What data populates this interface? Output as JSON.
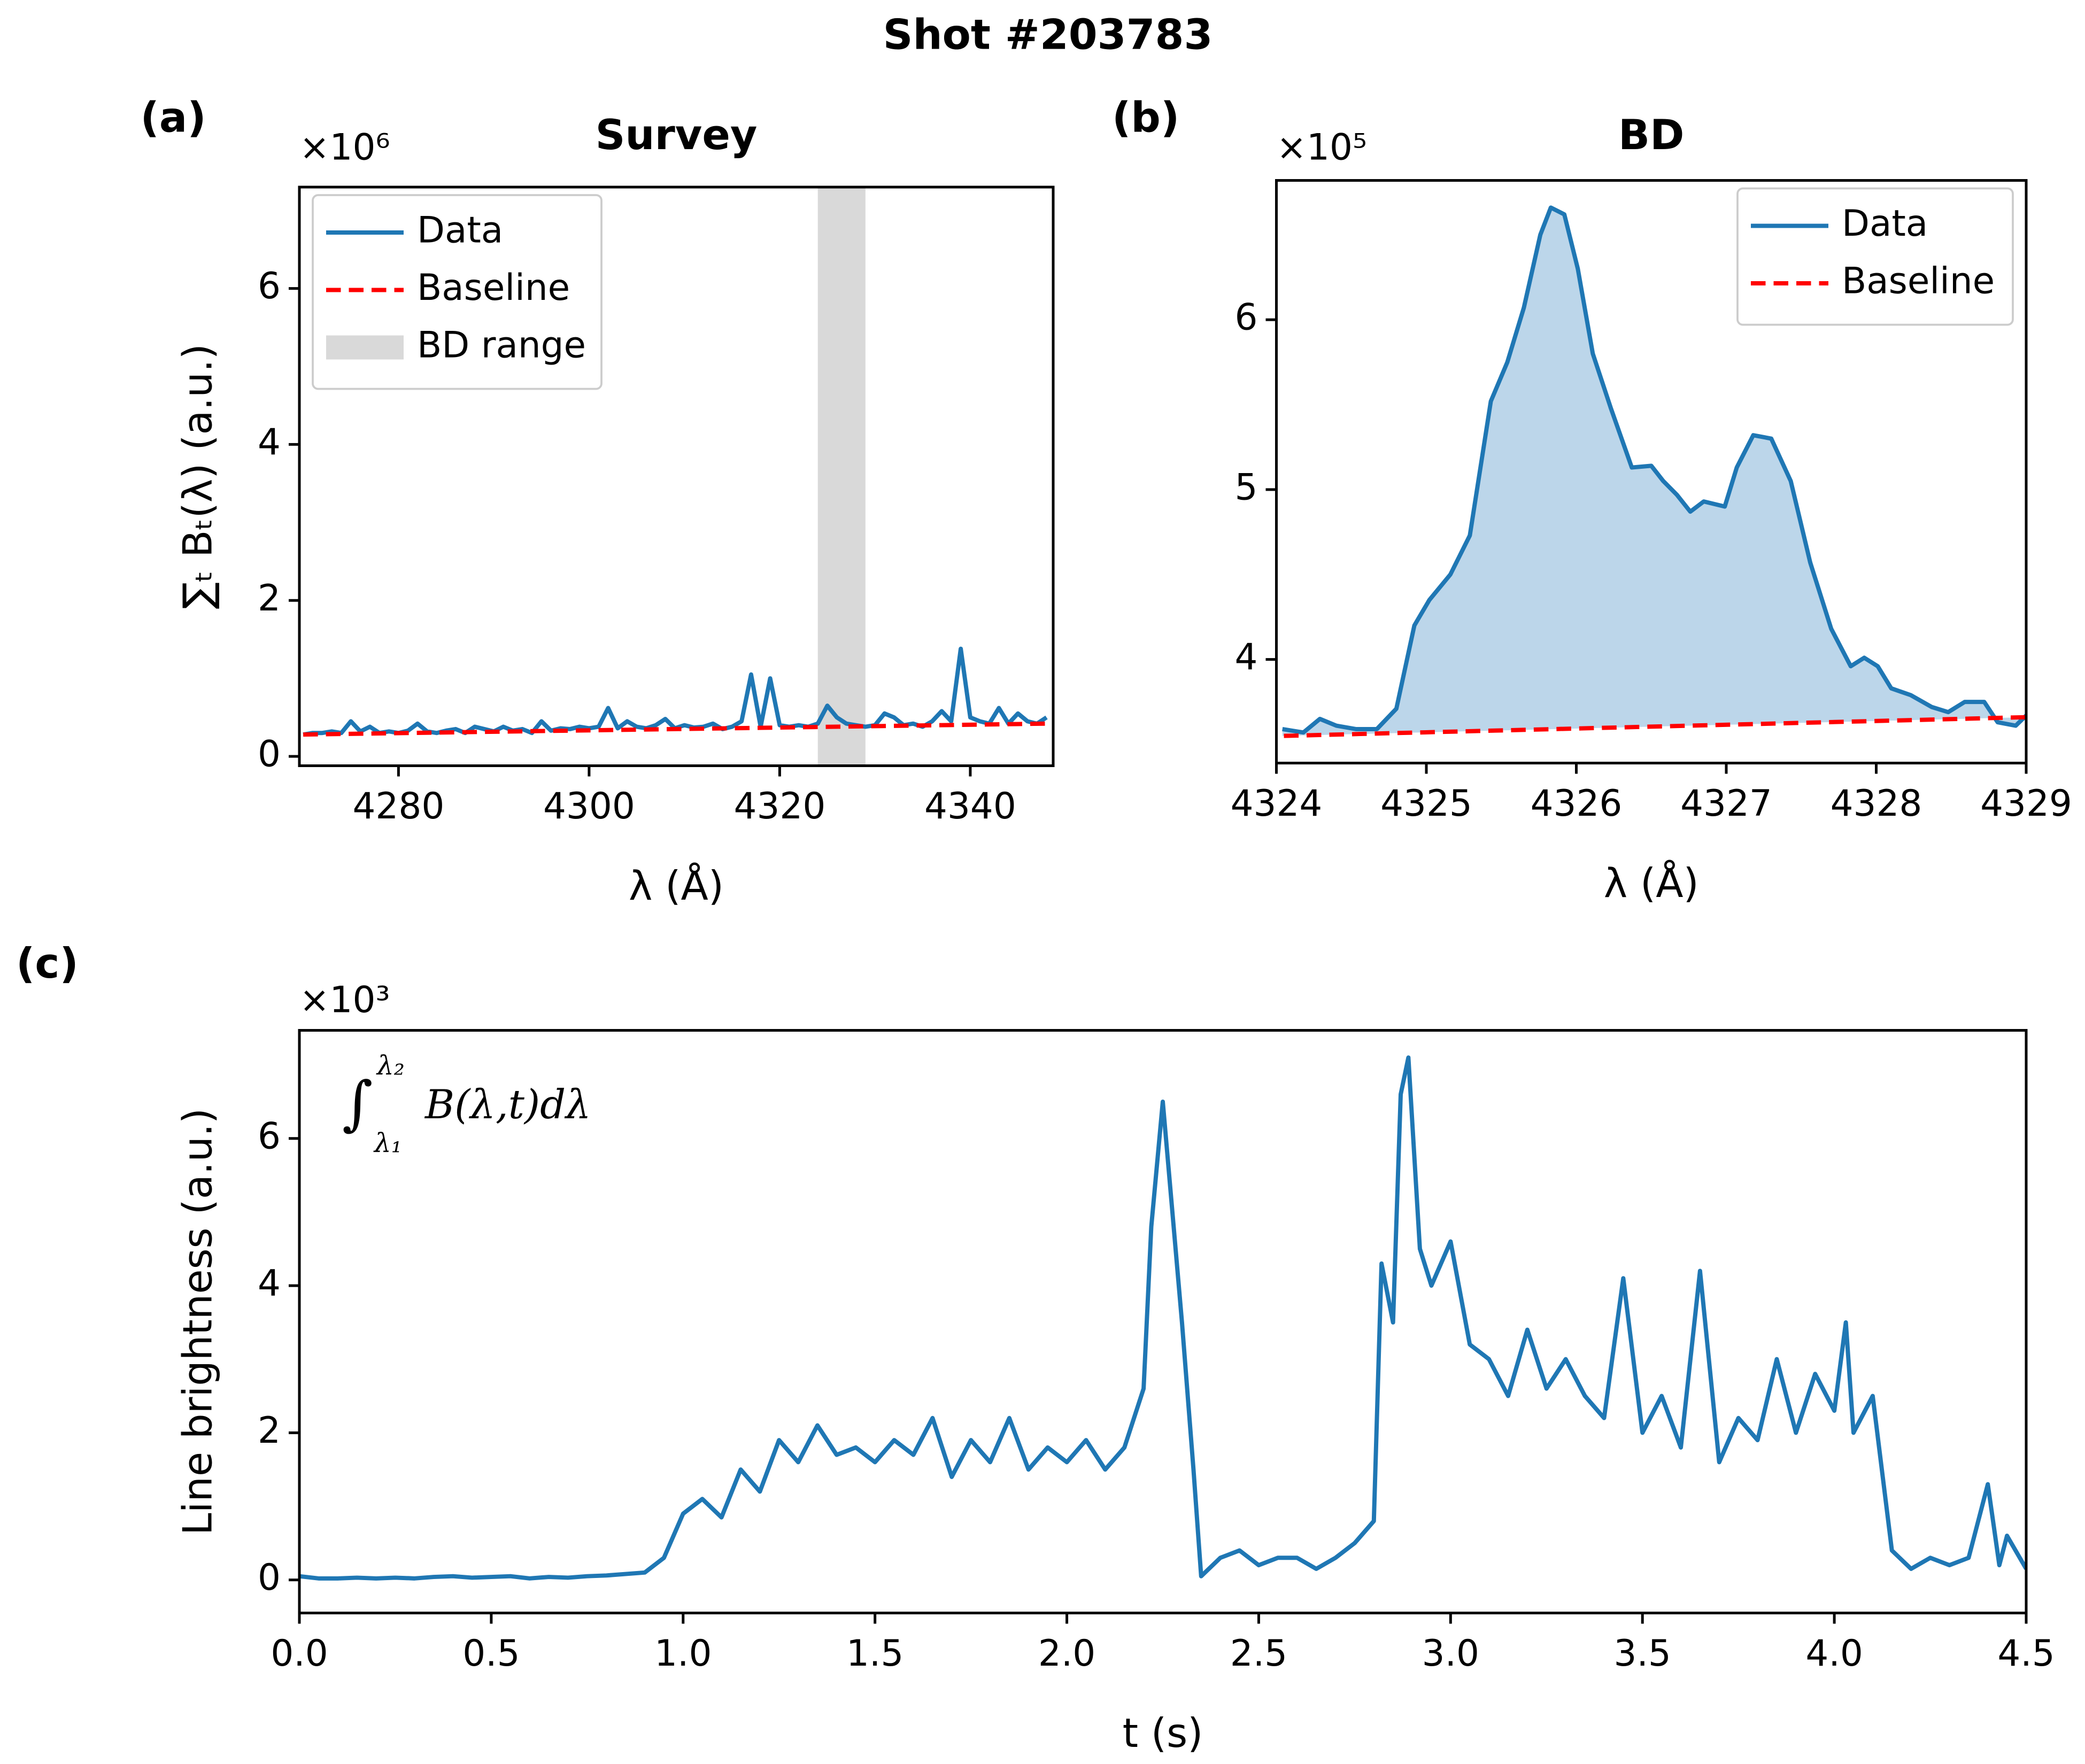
{
  "title": "Shot #203783",
  "chart_data": [
    {
      "type": "line",
      "panel_label": "(a)",
      "title": "Survey",
      "xlabel": "λ (Å)",
      "ylabel": "∑ₜ Bₜ(λ) (a.u.)",
      "offset_text": "×10⁶",
      "xlim": [
        4269.6,
        4348.7
      ],
      "ylim": [
        -0.12,
        7.3
      ],
      "xticks": [
        4280,
        4300,
        4320,
        4340
      ],
      "yticks": [
        0,
        2,
        4,
        6
      ],
      "legend": "upper left",
      "series": [
        {
          "name": "Data",
          "color": "#1f77b4",
          "style": "solid",
          "x": [
            4270,
            4271,
            4272,
            4273,
            4274,
            4275,
            4276,
            4277,
            4278,
            4279,
            4280,
            4281,
            4282,
            4283,
            4284,
            4285,
            4286,
            4287,
            4288,
            4289,
            4290,
            4291,
            4292,
            4293,
            4294,
            4295,
            4296,
            4297,
            4298,
            4299,
            4300,
            4301,
            4302,
            4303,
            4304,
            4305,
            4306,
            4307,
            4308,
            4309,
            4310,
            4311,
            4312,
            4313,
            4314,
            4315,
            4316,
            4317,
            4318,
            4319,
            4320,
            4321,
            4322,
            4323,
            4324,
            4325,
            4326,
            4327,
            4328,
            4329,
            4330,
            4331,
            4332,
            4333,
            4334,
            4335,
            4336,
            4337,
            4338,
            4339,
            4340,
            4341,
            4342,
            4343,
            4344,
            4345,
            4346,
            4347,
            4348
          ],
          "values": [
            0.28,
            0.3,
            0.3,
            0.32,
            0.3,
            0.45,
            0.32,
            0.38,
            0.3,
            0.32,
            0.3,
            0.33,
            0.42,
            0.32,
            0.3,
            0.33,
            0.35,
            0.3,
            0.38,
            0.35,
            0.32,
            0.38,
            0.33,
            0.35,
            0.3,
            0.45,
            0.33,
            0.36,
            0.35,
            0.38,
            0.36,
            0.38,
            0.62,
            0.36,
            0.45,
            0.38,
            0.36,
            0.4,
            0.48,
            0.36,
            0.4,
            0.37,
            0.38,
            0.42,
            0.35,
            0.38,
            0.45,
            1.05,
            0.38,
            1.0,
            0.4,
            0.38,
            0.4,
            0.38,
            0.42,
            0.65,
            0.5,
            0.42,
            0.4,
            0.38,
            0.4,
            0.55,
            0.5,
            0.4,
            0.42,
            0.38,
            0.45,
            0.58,
            0.45,
            1.38,
            0.5,
            0.45,
            0.42,
            0.62,
            0.42,
            0.55,
            0.45,
            0.42,
            0.5
          ]
        },
        {
          "name": "Baseline",
          "color": "#ff0000",
          "style": "dashed",
          "x": [
            4270,
            4348
          ],
          "values": [
            0.28,
            0.42
          ]
        }
      ],
      "span": {
        "name": "BD range",
        "color": "#d9d9d9",
        "x": [
          4324,
          4329
        ]
      }
    },
    {
      "type": "line",
      "panel_label": "(b)",
      "title": "BD",
      "xlabel": "λ (Å)",
      "offset_text": "×10⁵",
      "xlim": [
        4324,
        4329
      ],
      "ylim": [
        3.39,
        6.82
      ],
      "xticks": [
        4324,
        4325,
        4326,
        4327,
        4328,
        4329
      ],
      "yticks": [
        4,
        5,
        6
      ],
      "legend": "upper right",
      "fill": "#bcd6ea",
      "series": [
        {
          "name": "Data",
          "color": "#1f77b4",
          "style": "solid",
          "x": [
            4324.04,
            4324.18,
            4324.29,
            4324.4,
            4324.53,
            4324.67,
            4324.8,
            4324.92,
            4325.02,
            4325.16,
            4325.29,
            4325.43,
            4325.54,
            4325.65,
            4325.76,
            4325.83,
            4325.92,
            4326.01,
            4326.11,
            4326.23,
            4326.37,
            4326.5,
            4326.58,
            4326.67,
            4326.76,
            4326.85,
            4326.99,
            4327.07,
            4327.18,
            4327.3,
            4327.43,
            4327.56,
            4327.7,
            4327.83,
            4327.92,
            4328.01,
            4328.1,
            4328.23,
            4328.37,
            4328.48,
            4328.59,
            4328.72,
            4328.81,
            4328.93,
            4329
          ],
          "values": [
            3.59,
            3.57,
            3.65,
            3.61,
            3.59,
            3.59,
            3.71,
            4.2,
            4.35,
            4.5,
            4.73,
            5.52,
            5.75,
            6.07,
            6.5,
            6.66,
            6.62,
            6.3,
            5.8,
            5.48,
            5.13,
            5.14,
            5.05,
            4.97,
            4.87,
            4.93,
            4.9,
            5.13,
            5.32,
            5.3,
            5.05,
            4.57,
            4.18,
            3.96,
            4.01,
            3.96,
            3.83,
            3.79,
            3.72,
            3.69,
            3.75,
            3.75,
            3.63,
            3.61,
            3.67
          ]
        },
        {
          "name": "Baseline",
          "color": "#ff0000",
          "style": "dashed",
          "x": [
            4324.05,
            4329
          ],
          "values": [
            3.55,
            3.66
          ]
        }
      ]
    },
    {
      "type": "line",
      "panel_label": "(c)",
      "xlabel": "t (s)",
      "ylabel": "Line brightness (a.u.)",
      "offset_text": "×10³",
      "annotation": {
        "symbol": "∫",
        "lower": "λ₁",
        "upper": "λ₂",
        "body": "B(λ,t)dλ"
      },
      "xlim": [
        0,
        4.5
      ],
      "ylim": [
        -0.45,
        7.47
      ],
      "xticks": [
        {
          "value": 0,
          "label": "0.0"
        },
        0.5,
        {
          "value": 1,
          "label": "1.0"
        },
        1.5,
        {
          "value": 2,
          "label": "2.0"
        },
        2.5,
        {
          "value": 3,
          "label": "3.0"
        },
        3.5,
        {
          "value": 4,
          "label": "4.0"
        },
        4.5
      ],
      "yticks": [
        0,
        2,
        4,
        6
      ],
      "series": [
        {
          "name": "Data",
          "color": "#1f77b4",
          "style": "solid",
          "x": [
            0,
            0.05,
            0.1,
            0.15,
            0.2,
            0.25,
            0.3,
            0.35,
            0.4,
            0.45,
            0.5,
            0.55,
            0.6,
            0.65,
            0.7,
            0.75,
            0.8,
            0.85,
            0.9,
            0.95,
            1.0,
            1.05,
            1.1,
            1.15,
            1.2,
            1.25,
            1.3,
            1.35,
            1.4,
            1.45,
            1.5,
            1.55,
            1.6,
            1.65,
            1.7,
            1.75,
            1.8,
            1.85,
            1.9,
            1.95,
            2.0,
            2.05,
            2.1,
            2.15,
            2.2,
            2.22,
            2.25,
            2.3,
            2.33,
            2.35,
            2.4,
            2.45,
            2.5,
            2.55,
            2.6,
            2.65,
            2.7,
            2.75,
            2.8,
            2.82,
            2.85,
            2.87,
            2.89,
            2.92,
            2.95,
            3.0,
            3.05,
            3.1,
            3.15,
            3.2,
            3.25,
            3.3,
            3.35,
            3.4,
            3.45,
            3.5,
            3.55,
            3.6,
            3.65,
            3.7,
            3.75,
            3.8,
            3.85,
            3.9,
            3.95,
            4.0,
            4.03,
            4.05,
            4.1,
            4.15,
            4.2,
            4.25,
            4.3,
            4.35,
            4.4,
            4.43,
            4.45,
            4.5
          ],
          "values": [
            0.05,
            0.02,
            0.02,
            0.03,
            0.02,
            0.03,
            0.02,
            0.04,
            0.05,
            0.03,
            0.04,
            0.05,
            0.02,
            0.04,
            0.03,
            0.05,
            0.06,
            0.08,
            0.1,
            0.3,
            0.9,
            1.1,
            0.85,
            1.5,
            1.2,
            1.9,
            1.6,
            2.1,
            1.7,
            1.8,
            1.6,
            1.9,
            1.7,
            2.2,
            1.4,
            1.9,
            1.6,
            2.2,
            1.5,
            1.8,
            1.6,
            1.9,
            1.5,
            1.8,
            2.6,
            4.8,
            6.5,
            3.5,
            1.5,
            0.05,
            0.3,
            0.4,
            0.2,
            0.3,
            0.3,
            0.15,
            0.3,
            0.5,
            0.8,
            4.3,
            3.5,
            6.6,
            7.1,
            4.5,
            4.0,
            4.6,
            3.2,
            3.0,
            2.5,
            3.4,
            2.6,
            3.0,
            2.5,
            2.2,
            4.1,
            2.0,
            2.5,
            1.8,
            4.2,
            1.6,
            2.2,
            1.9,
            3.0,
            2.0,
            2.8,
            2.3,
            3.5,
            2.0,
            2.5,
            0.4,
            0.15,
            0.3,
            0.2,
            0.3,
            1.3,
            0.2,
            0.6,
            0.15
          ]
        }
      ]
    }
  ]
}
